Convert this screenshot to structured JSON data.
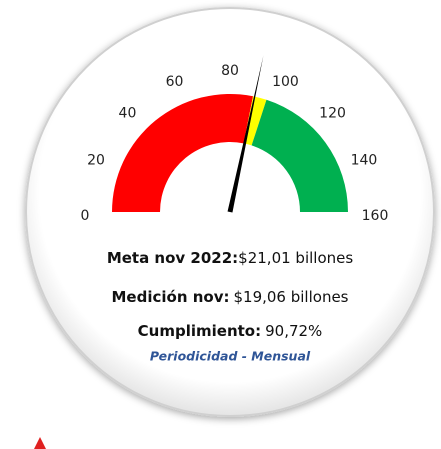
{
  "chart_data": {
    "type": "gauge",
    "ylim": [
      0,
      160
    ],
    "yticks": [
      0,
      20,
      40,
      60,
      80,
      100,
      120,
      140,
      160
    ],
    "values": [
      90.72
    ],
    "value_labels": [
      "90,72%"
    ],
    "value_title": "Cumplimiento:",
    "needle_color": "#000000",
    "bands": [
      {
        "from": 0,
        "to": 90,
        "color": "#ff0000"
      },
      {
        "from": 90,
        "to": 96,
        "color": "#ffff00"
      },
      {
        "from": 96,
        "to": 160,
        "color": "#00b050"
      }
    ],
    "annotations": [
      {
        "label": "Meta nov 2022:",
        "text": "$21,01 billones"
      },
      {
        "label": "Medición nov:",
        "text": "$19,06 billones"
      }
    ],
    "footer": "Periodicidad - Mensual"
  }
}
